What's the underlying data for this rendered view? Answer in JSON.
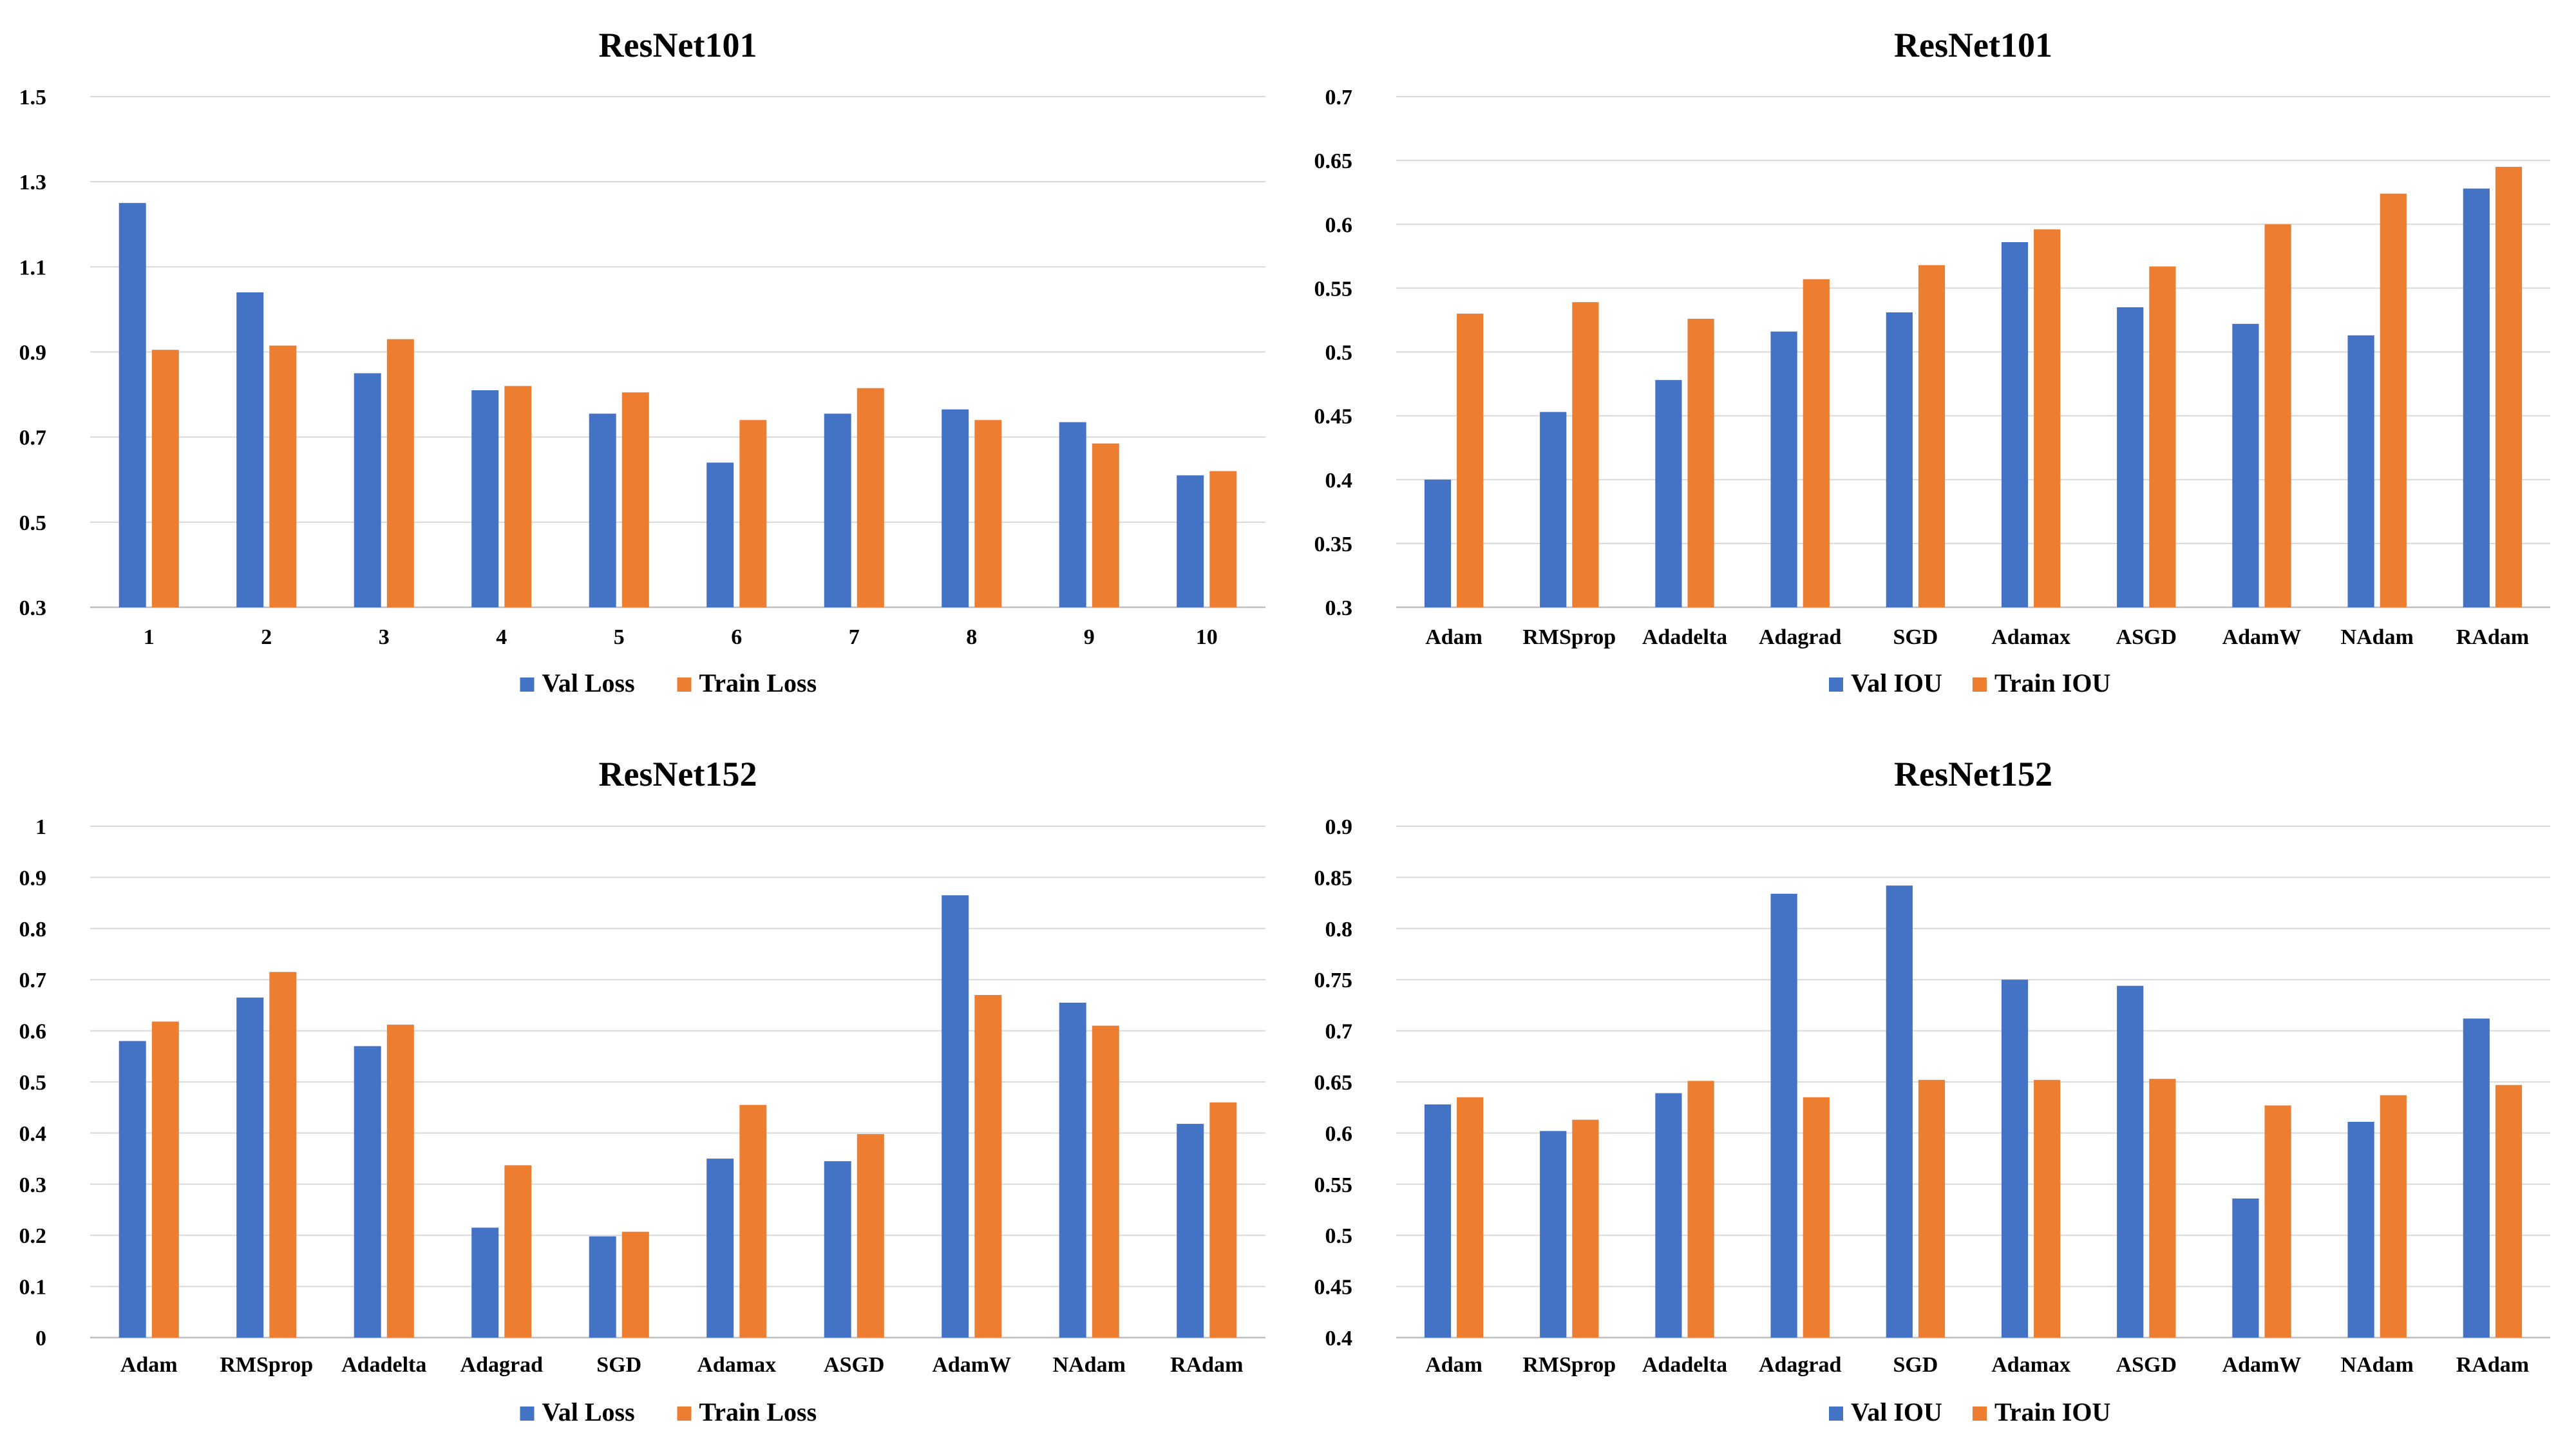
{
  "colors": {
    "series_1": "#4472c4",
    "series_2": "#ed7d31",
    "gridline": "#d9d9d9",
    "axis": "#bfbfbf"
  },
  "chart_data": [
    {
      "type": "bar",
      "title": "ResNet101",
      "xlabel": "",
      "ylabel": "",
      "categories": [
        "1",
        "2",
        "3",
        "4",
        "5",
        "6",
        "7",
        "8",
        "9",
        "10"
      ],
      "ylim": [
        0.3,
        1.5
      ],
      "yticks": [
        "0.3",
        "0.5",
        "0.7",
        "0.9",
        "1.1",
        "1.3",
        "1.5"
      ],
      "grid": true,
      "legend": "bottom",
      "series": [
        {
          "name": "Val Loss",
          "values": [
            1.25,
            1.04,
            0.85,
            0.81,
            0.755,
            0.64,
            0.755,
            0.765,
            0.735,
            0.61
          ]
        },
        {
          "name": "Train Loss",
          "values": [
            0.905,
            0.915,
            0.93,
            0.82,
            0.805,
            0.74,
            0.815,
            0.74,
            0.685,
            0.62
          ]
        }
      ]
    },
    {
      "type": "bar",
      "title": "ResNet101",
      "xlabel": "",
      "ylabel": "",
      "categories": [
        "Adam",
        "RMSprop",
        "Adadelta",
        "Adagrad",
        "SGD",
        "Adamax",
        "ASGD",
        "AdamW",
        "NAdam",
        "RAdam"
      ],
      "ylim": [
        0.3,
        0.7
      ],
      "yticks": [
        "0.3",
        "0.35",
        "0.4",
        "0.45",
        "0.5",
        "0.55",
        "0.6",
        "0.65",
        "0.7"
      ],
      "grid": true,
      "legend": "bottom",
      "series": [
        {
          "name": "Val IOU",
          "values": [
            0.4,
            0.453,
            0.478,
            0.516,
            0.531,
            0.586,
            0.535,
            0.522,
            0.513,
            0.628
          ]
        },
        {
          "name": "Train IOU",
          "values": [
            0.53,
            0.539,
            0.526,
            0.557,
            0.568,
            0.596,
            0.567,
            0.6,
            0.624,
            0.645
          ]
        }
      ]
    },
    {
      "type": "bar",
      "title": "ResNet152",
      "xlabel": "",
      "ylabel": "",
      "categories": [
        "Adam",
        "RMSprop",
        "Adadelta",
        "Adagrad",
        "SGD",
        "Adamax",
        "ASGD",
        "AdamW",
        "NAdam",
        "RAdam"
      ],
      "ylim": [
        0,
        1
      ],
      "yticks": [
        "0",
        "0.1",
        "0.2",
        "0.3",
        "0.4",
        "0.5",
        "0.6",
        "0.7",
        "0.8",
        "0.9",
        "1"
      ],
      "grid": true,
      "legend": "bottom",
      "series": [
        {
          "name": "Val Loss",
          "values": [
            0.58,
            0.665,
            0.57,
            0.215,
            0.198,
            0.35,
            0.345,
            0.865,
            0.655,
            0.418
          ]
        },
        {
          "name": "Train Loss",
          "values": [
            0.618,
            0.715,
            0.612,
            0.337,
            0.207,
            0.455,
            0.398,
            0.67,
            0.61,
            0.46
          ]
        }
      ]
    },
    {
      "type": "bar",
      "title": "ResNet152",
      "xlabel": "",
      "ylabel": "",
      "categories": [
        "Adam",
        "RMSprop",
        "Adadelta",
        "Adagrad",
        "SGD",
        "Adamax",
        "ASGD",
        "AdamW",
        "NAdam",
        "RAdam"
      ],
      "ylim": [
        0.4,
        0.9
      ],
      "yticks": [
        "0.4",
        "0.45",
        "0.5",
        "0.55",
        "0.6",
        "0.65",
        "0.7",
        "0.75",
        "0.8",
        "0.85",
        "0.9"
      ],
      "grid": true,
      "legend": "bottom",
      "series": [
        {
          "name": "Val IOU",
          "values": [
            0.628,
            0.602,
            0.639,
            0.834,
            0.842,
            0.75,
            0.744,
            0.536,
            0.611,
            0.712
          ]
        },
        {
          "name": "Train IOU",
          "values": [
            0.635,
            0.613,
            0.651,
            0.635,
            0.652,
            0.652,
            0.653,
            0.627,
            0.637,
            0.647
          ]
        }
      ]
    }
  ]
}
